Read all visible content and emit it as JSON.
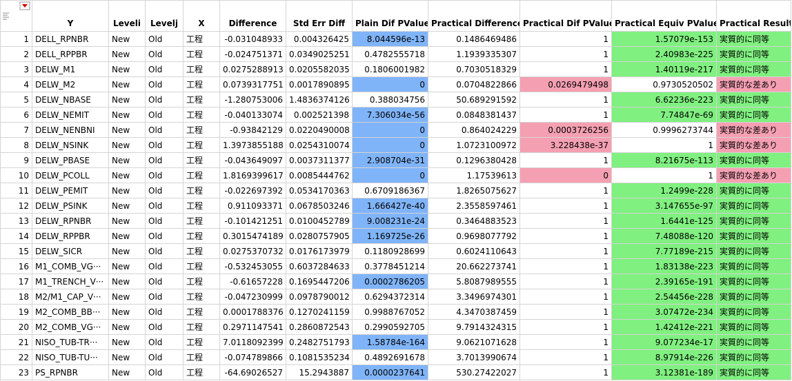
{
  "table": {
    "columns": [
      "Y",
      "Leveli",
      "Levelj",
      "X",
      "Difference",
      "Std Err Diff",
      "Plain Dif PValue",
      "Practical Difference",
      "Practical Dif PValue",
      "Practical Equiv PValue",
      "Practical Result"
    ],
    "row_numbers": [
      "1",
      "2",
      "3",
      "4",
      "5",
      "6",
      "7",
      "8",
      "9",
      "10",
      "11",
      "12",
      "13",
      "14",
      "15",
      "16",
      "17",
      "18",
      "19",
      "20",
      "21",
      "22",
      "23"
    ],
    "rows": [
      [
        "DELL_RPNBR",
        "New",
        "Old",
        "工程",
        "-0.031048933",
        "0.004326425",
        "8.044596e-13",
        "0.1486469486",
        "1",
        "1.57079e-153",
        "実質的に同等"
      ],
      [
        "DELL_RPPBR",
        "New",
        "Old",
        "工程",
        "-0.024751371",
        "0.0349025251",
        "0.4782555718",
        "1.1939335307",
        "1",
        "2.40983e-225",
        "実質的に同等"
      ],
      [
        "DELW_M1",
        "New",
        "Old",
        "工程",
        "0.0275288913",
        "0.0205582035",
        "0.1806001982",
        "0.7030518329",
        "1",
        "1.40119e-217",
        "実質的に同等"
      ],
      [
        "DELW_M2",
        "New",
        "Old",
        "工程",
        "0.0739317751",
        "0.0017890895",
        "0",
        "0.0704822866",
        "0.0269479498",
        "0.9730520502",
        "実質的な差あり"
      ],
      [
        "DELW_NBASE",
        "New",
        "Old",
        "工程",
        "-1.280753006",
        "1.4836374126",
        "0.388034756",
        "50.689291592",
        "1",
        "6.62236e-223",
        "実質的に同等"
      ],
      [
        "DELW_NEMIT",
        "New",
        "Old",
        "工程",
        "-0.040133074",
        "0.002521398",
        "7.306034e-56",
        "0.0848381437",
        "1",
        "7.74847e-69",
        "実質的に同等"
      ],
      [
        "DELW_NENBNI",
        "New",
        "Old",
        "工程",
        "-0.93842129",
        "0.0220490008",
        "0",
        "0.864024229",
        "0.0003726256",
        "0.9996273744",
        "実質的な差あり"
      ],
      [
        "DELW_NSINK",
        "New",
        "Old",
        "工程",
        "1.3973855188",
        "0.0254310074",
        "0",
        "1.0723100972",
        "3.228438e-37",
        "1",
        "実質的な差あり"
      ],
      [
        "DELW_PBASE",
        "New",
        "Old",
        "工程",
        "-0.043649097",
        "0.0037311377",
        "2.908704e-31",
        "0.1296380428",
        "1",
        "8.21675e-113",
        "実質的に同等"
      ],
      [
        "DELW_PCOLL",
        "New",
        "Old",
        "工程",
        "1.8169399617",
        "0.0085444762",
        "0",
        "1.17539613",
        "0",
        "1",
        "実質的な差あり"
      ],
      [
        "DELW_PEMIT",
        "New",
        "Old",
        "工程",
        "-0.022697392",
        "0.0534170363",
        "0.6709186367",
        "1.8265075627",
        "1",
        "1.2499e-228",
        "実質的に同等"
      ],
      [
        "DELW_PSINK",
        "New",
        "Old",
        "工程",
        "0.911093371",
        "0.0678503246",
        "1.666427e-40",
        "2.3558597461",
        "1",
        "3.147655e-97",
        "実質的に同等"
      ],
      [
        "DELW_RPNBR",
        "New",
        "Old",
        "工程",
        "-0.101421251",
        "0.0100452789",
        "9.008231e-24",
        "0.3464883523",
        "1",
        "1.6441e-125",
        "実質的に同等"
      ],
      [
        "DELW_RPPBR",
        "New",
        "Old",
        "工程",
        "0.3015474189",
        "0.0280757905",
        "1.169725e-26",
        "0.9698077792",
        "1",
        "7.48088e-120",
        "実質的に同等"
      ],
      [
        "DELW_SICR",
        "New",
        "Old",
        "工程",
        "0.0275370732",
        "0.0176173979",
        "0.1180928699",
        "0.6024110643",
        "1",
        "7.77189e-215",
        "実質的に同等"
      ],
      [
        "M1_COMB_VG···",
        "New",
        "Old",
        "工程",
        "-0.532453055",
        "0.6037284633",
        "0.3778451214",
        "20.662273741",
        "1",
        "1.83138e-223",
        "実質的に同等"
      ],
      [
        "M1_TRENCH_V···",
        "New",
        "Old",
        "工程",
        "-0.61657228",
        "0.1695447206",
        "0.0002786205",
        "5.8087989555",
        "1",
        "2.39165e-191",
        "実質的に同等"
      ],
      [
        "M2/M1_CAP_V···",
        "New",
        "Old",
        "工程",
        "-0.047230999",
        "0.0978790012",
        "0.6294372314",
        "3.3496974301",
        "1",
        "2.54456e-228",
        "実質的に同等"
      ],
      [
        "M2_COMB_BB···",
        "New",
        "Old",
        "工程",
        "0.0001788376",
        "0.1270241159",
        "0.9988767052",
        "4.3470387459",
        "1",
        "3.07472e-234",
        "実質的に同等"
      ],
      [
        "M2_COMB_VG···",
        "New",
        "Old",
        "工程",
        "0.2971147541",
        "0.2860872543",
        "0.2990592705",
        "9.7914324315",
        "1",
        "1.42412e-221",
        "実質的に同等"
      ],
      [
        "NISO_TUB-TR···",
        "New",
        "Old",
        "工程",
        "7.0118092399",
        "0.2482751793",
        "1.58784e-164",
        "9.0621071628",
        "1",
        "9.077234e-17",
        "実質的に同等"
      ],
      [
        "NISO_TUB-TU···",
        "New",
        "Old",
        "工程",
        "-0.074789866",
        "0.1081535234",
        "0.4892691678",
        "3.7013990674",
        "1",
        "8.97914e-226",
        "実質的に同等"
      ],
      [
        "PS_RPNBR",
        "New",
        "Old",
        "工程",
        "-64.69026527",
        "15.2943887",
        "0.0000237641",
        "530.27422027",
        "1",
        "3.12381e-189",
        "実質的に同等"
      ]
    ],
    "highlights": [
      {
        "column": 6,
        "color": "#80b4f8",
        "rows": [
          0,
          3,
          5,
          6,
          7,
          8,
          9,
          11,
          12,
          13,
          16,
          20,
          22
        ]
      },
      {
        "column": 8,
        "color": "#f5a0b2",
        "rows": [
          3,
          6,
          7,
          9
        ]
      },
      {
        "column": 9,
        "color": "#80f080",
        "rows": [
          0,
          1,
          2,
          4,
          5,
          8,
          10,
          11,
          12,
          13,
          14,
          15,
          16,
          17,
          18,
          19,
          20,
          21,
          22
        ]
      },
      {
        "column": 10,
        "color": "#80f080",
        "rows": [
          0,
          1,
          2,
          4,
          5,
          8,
          10,
          11,
          12,
          13,
          14,
          15,
          16,
          17,
          18,
          19,
          20,
          21,
          22
        ]
      },
      {
        "column": 10,
        "color": "#f5a0b2",
        "rows": [
          3,
          6,
          7,
          9
        ]
      }
    ]
  }
}
